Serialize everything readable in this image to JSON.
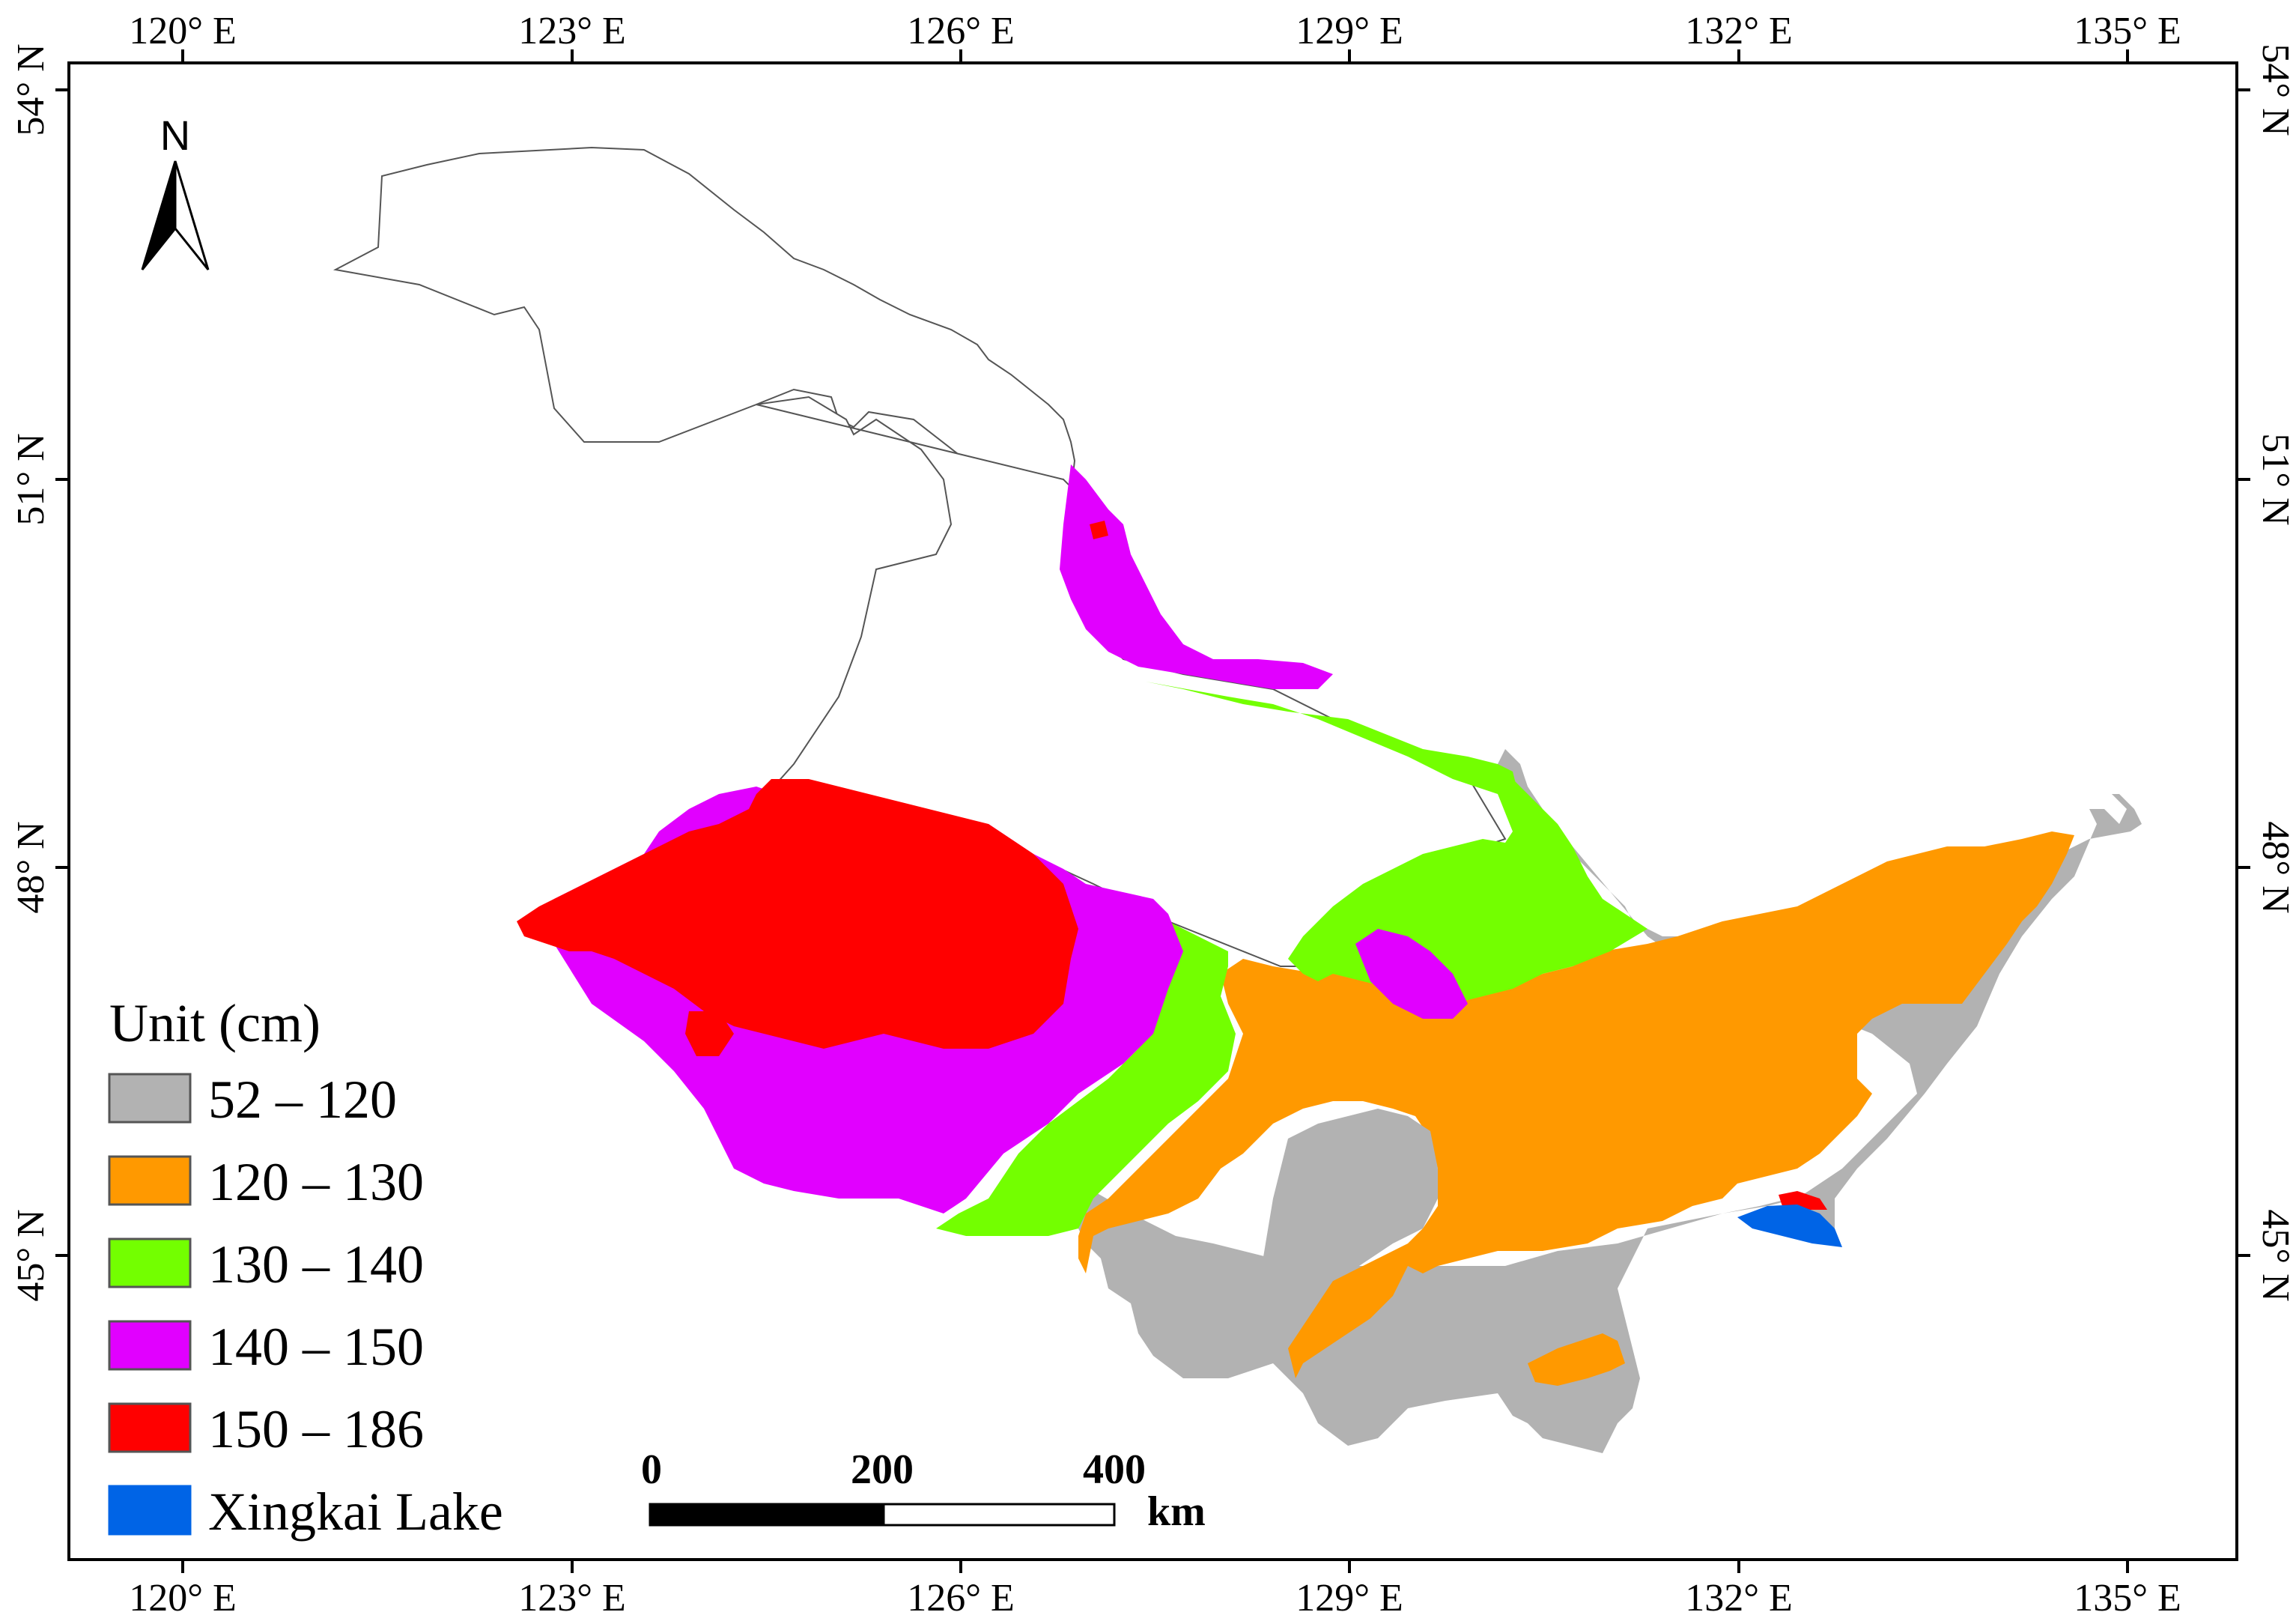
{
  "map": {
    "lon_labels": [
      "120° E",
      "123° E",
      "126° E",
      "129° E",
      "132° E",
      "135° E"
    ],
    "lat_labels": [
      "54° N",
      "51° N",
      "48° N",
      "45° N"
    ],
    "north_label": "N",
    "legend": {
      "title": "Unit (cm)",
      "items": [
        {
          "label": "52 – 120",
          "color": "#b2b2b2"
        },
        {
          "label": "120 – 130",
          "color": "#ff9900"
        },
        {
          "label": "130 – 140",
          "color": "#73ff00"
        },
        {
          "label": "140 – 150",
          "color": "#e100ff"
        },
        {
          "label": "150 – 186",
          "color": "#ff0000"
        },
        {
          "label": "Xingkai Lake",
          "color": "#0064e6"
        }
      ]
    },
    "scale_bar": {
      "ticks": [
        "0",
        "200",
        "400"
      ],
      "unit": "km"
    }
  }
}
